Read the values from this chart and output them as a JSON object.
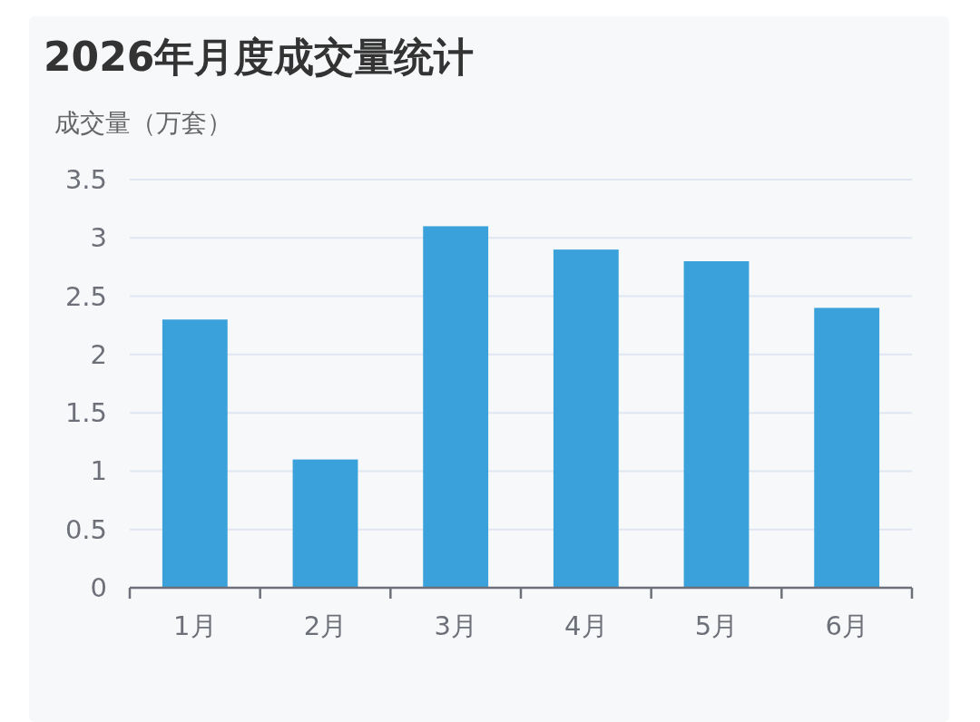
{
  "chart_data": {
    "type": "bar",
    "title": "2026年月度成交量统计",
    "ylabel": "成交量（万套）",
    "categories": [
      "1月",
      "2月",
      "3月",
      "4月",
      "5月",
      "6月"
    ],
    "values": [
      2.3,
      1.1,
      3.1,
      2.9,
      2.8,
      2.4
    ],
    "color": "#3aa1db",
    "ylim": [
      0,
      3.5
    ],
    "yticks": [
      0,
      0.5,
      1,
      1.5,
      2,
      2.5,
      3,
      3.5
    ],
    "grid": "y"
  }
}
